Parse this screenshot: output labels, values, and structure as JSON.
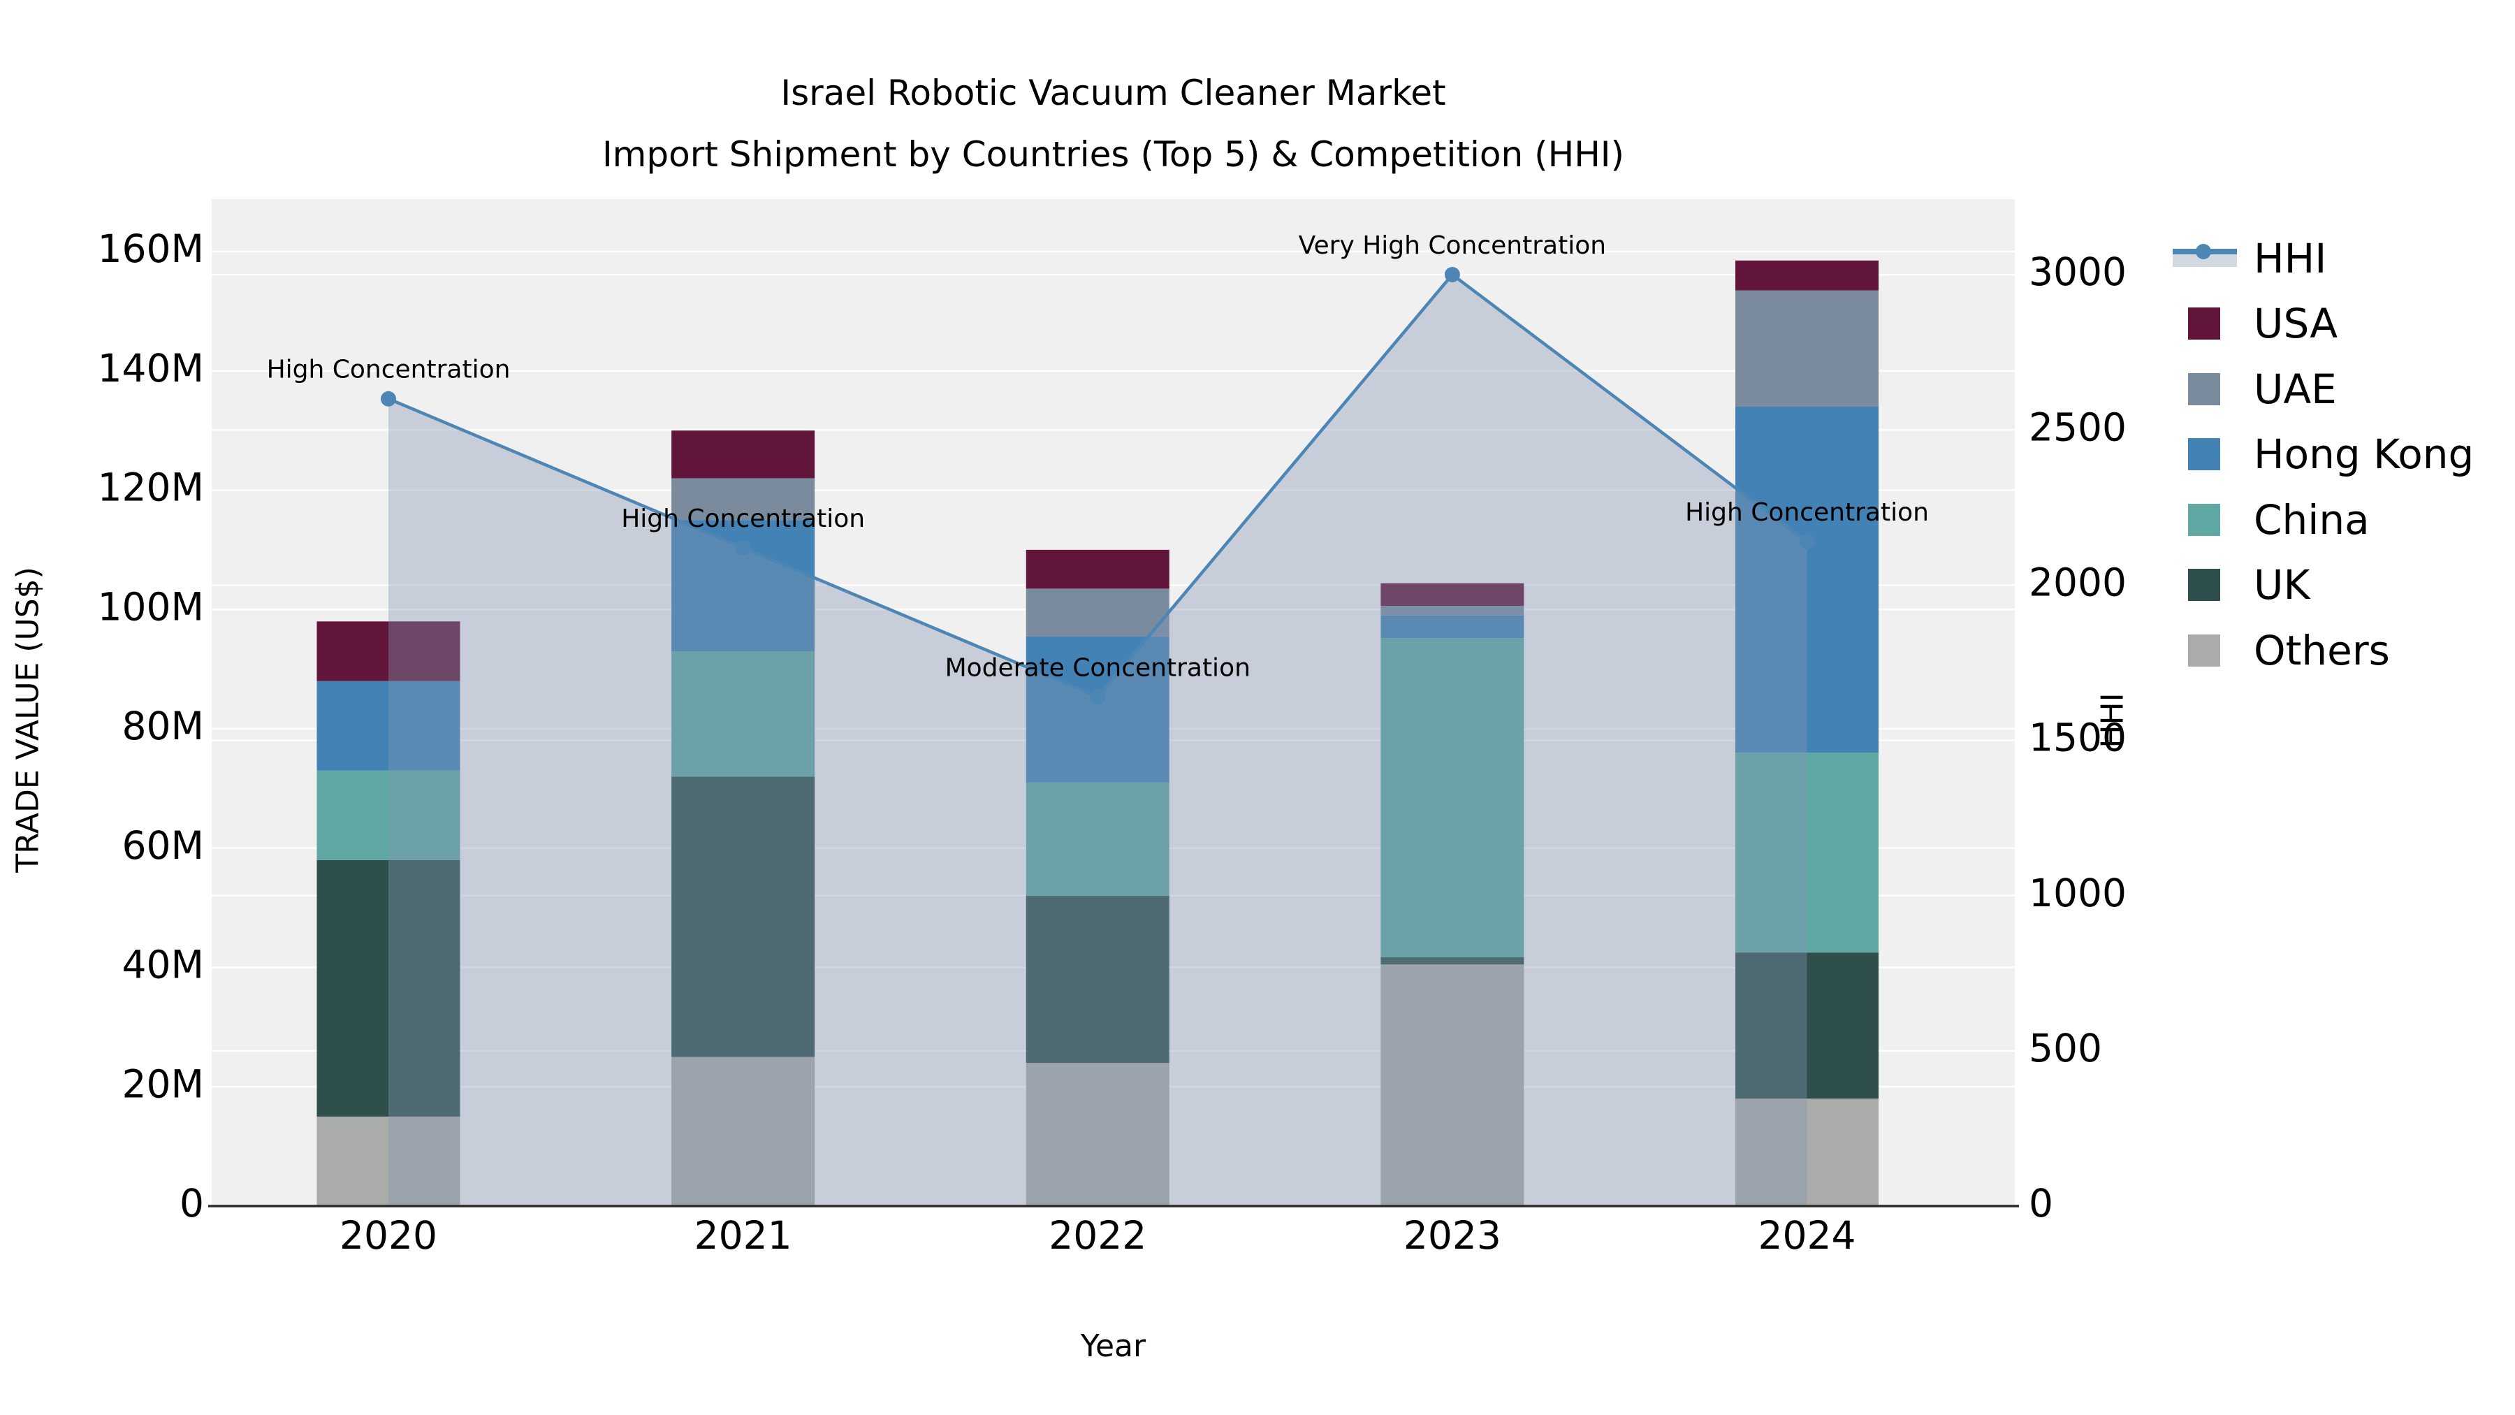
{
  "title": {
    "line1": "Israel Robotic Vacuum Cleaner Market",
    "line2": "Import Shipment by Countries (Top 5) & Competition (HHI)"
  },
  "axes": {
    "x_title": "Year",
    "y_left_title": "TRADE VALUE (US$)",
    "y_right_title": "HHI",
    "x_tick_labels": [
      "2020",
      "2021",
      "2022",
      "2023",
      "2024"
    ],
    "y_left_tick_labels": [
      "0",
      "20M",
      "40M",
      "60M",
      "80M",
      "100M",
      "120M",
      "140M",
      "160M"
    ],
    "y_right_tick_labels": [
      "0",
      "500",
      "1000",
      "1500",
      "2000",
      "2500",
      "3000"
    ]
  },
  "legend": {
    "items": [
      {
        "id": "hhi",
        "label": "HHI",
        "type": "line"
      },
      {
        "id": "usa",
        "label": "USA",
        "type": "square"
      },
      {
        "id": "uae",
        "label": "UAE",
        "type": "square"
      },
      {
        "id": "hong-kong",
        "label": "Hong Kong",
        "type": "square"
      },
      {
        "id": "china",
        "label": "China",
        "type": "square"
      },
      {
        "id": "uk",
        "label": "UK",
        "type": "square"
      },
      {
        "id": "others",
        "label": "Others",
        "type": "square"
      }
    ]
  },
  "annotations": [
    {
      "year": "2020",
      "label": "High Concentration"
    },
    {
      "year": "2021",
      "label": "High Concentration"
    },
    {
      "year": "2022",
      "label": "Moderate Concentration"
    },
    {
      "year": "2023",
      "label": "Very High Concentration"
    },
    {
      "year": "2024",
      "label": "High Concentration"
    }
  ],
  "colors": {
    "hhi_line": "#4D86B5",
    "hhi_area": "rgba(132,149,178,0.38)",
    "hhi_legend_band": "#D2D9E3",
    "plot_bg": "#F0F0F0",
    "grid": "#FFFFFF",
    "axis_line": "#2A2A2A",
    "text": "#000000"
  },
  "chart_data": {
    "type": "bar",
    "subtype": "stacked-bars-with-line-overlay",
    "title": "Israel Robotic Vacuum Cleaner Market — Import Shipment by Countries (Top 5) & Competition (HHI)",
    "xlabel": "Year",
    "ylabel_left": "TRADE VALUE (US$)",
    "ylabel_right": "HHI",
    "x": [
      2020,
      2021,
      2022,
      2023,
      2024
    ],
    "bar_value_unit": "million US$",
    "stack_order_note": "series listed bottom to top",
    "series": [
      {
        "name": "Others",
        "color": "#AAACAA",
        "values": [
          15,
          25,
          24,
          40.5,
          18
        ]
      },
      {
        "name": "UK",
        "color": "#2E4F4C",
        "values": [
          43,
          47,
          28,
          1.2,
          24.5
        ]
      },
      {
        "name": "China",
        "color": "#5FA8A4",
        "values": [
          15,
          21,
          19,
          53.5,
          33.5
        ]
      },
      {
        "name": "Hong Kong",
        "color": "#4282B4",
        "values": [
          15,
          22,
          24.5,
          3.8,
          58
        ]
      },
      {
        "name": "UAE",
        "color": "#7A8B9E",
        "values": [
          0,
          7,
          8,
          1.6,
          19.5
        ]
      },
      {
        "name": "USA",
        "color": "#61153A",
        "values": [
          10,
          8,
          6.5,
          3.8,
          5
        ]
      }
    ],
    "bar_totals_musd": [
      98,
      130,
      110,
      104.4,
      158.5
    ],
    "line_series": {
      "name": "HHI",
      "axis": "right",
      "values": [
        2600,
        2120,
        1640,
        3000,
        2140
      ]
    },
    "ylim_left": [
      0,
      160000000
    ],
    "ylim_right": [
      0,
      3000
    ],
    "grid": true,
    "legend_position": "right-outside"
  }
}
